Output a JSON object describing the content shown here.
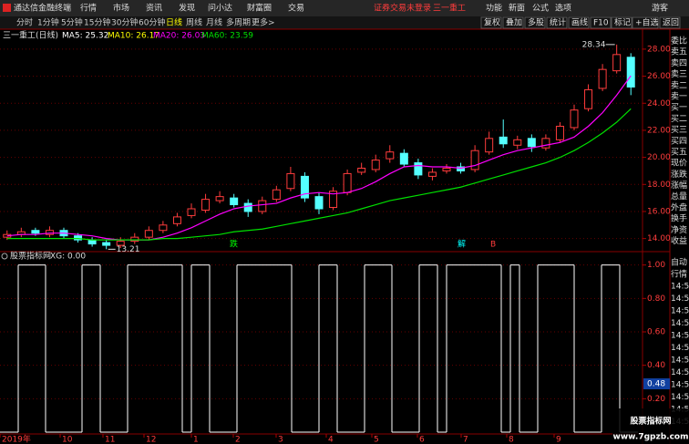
{
  "menu": {
    "app": "通达信金融终端",
    "items": [
      "行情",
      "市场",
      "资讯",
      "发现",
      "问小达",
      "财富圈",
      "交易"
    ],
    "status": "证券交易未登录",
    "stock": "三一重工",
    "right": [
      "功能",
      "新面",
      "公式",
      "选项"
    ],
    "user": "游客"
  },
  "toolbar": {
    "periods": [
      "分时",
      "1分钟",
      "5分钟",
      "15分钟",
      "30分钟",
      "60分钟",
      "日线",
      "周线",
      "月线",
      "多周期",
      "更多>"
    ],
    "tools": [
      "复权",
      "叠加",
      "多股",
      "统计",
      "画线",
      "F10",
      "标记",
      "+自选",
      "返回"
    ]
  },
  "side_panel": {
    "quote": [
      "委比",
      "卖五",
      "卖四",
      "卖三",
      "卖二",
      "卖一",
      "买一",
      "买二",
      "买三",
      "买四",
      "买五",
      "现价",
      "涨跌",
      "涨幅",
      "总量",
      "外盘",
      "换手",
      "净资",
      "收益"
    ],
    "tabs": [
      "自动",
      "行情"
    ],
    "times": [
      "14:5",
      "14:5",
      "14:5",
      "14:5",
      "14:5",
      "14:5",
      "14:5",
      "14:5",
      "14:5",
      "14:5",
      "14:5",
      "14:5"
    ]
  },
  "chart_data": [
    {
      "type": "candlestick",
      "title": "三一重工(日线)",
      "legend": [
        {
          "name": "MA5: 25.32",
          "color": "#ffffff"
        },
        {
          "name": "MA10: 26.17",
          "color": "#ffff00"
        }
      ],
      "open": [
        14.1,
        14.3,
        14.6,
        14.3,
        14.6,
        14.2,
        13.9,
        13.7,
        13.5,
        13.8,
        14.1,
        14.6,
        15.1,
        15.7,
        16.1,
        16.8,
        17.0,
        16.6,
        16.0,
        16.9,
        17.7,
        18.6,
        17.1,
        16.3,
        17.4,
        18.9,
        19.1,
        19.9,
        20.3,
        19.6,
        18.6,
        19.0,
        19.3,
        19.1,
        20.4,
        21.5,
        20.9,
        21.4,
        20.7,
        21.3,
        22.2,
        23.6,
        25.1,
        26.4,
        27.4
      ],
      "high": [
        14.6,
        14.8,
        14.8,
        14.9,
        14.8,
        14.4,
        14.1,
        13.9,
        14.1,
        14.4,
        14.9,
        15.3,
        15.9,
        16.6,
        17.3,
        17.5,
        17.3,
        16.9,
        17.1,
        17.9,
        19.3,
        18.9,
        17.4,
        17.8,
        19.1,
        19.6,
        20.2,
        20.9,
        20.6,
        19.9,
        19.2,
        19.5,
        19.6,
        20.9,
        21.9,
        22.8,
        21.6,
        21.7,
        21.7,
        22.6,
        23.9,
        25.4,
        26.9,
        28.34,
        27.7
      ],
      "low": [
        13.9,
        14.1,
        14.2,
        14.1,
        14.0,
        13.7,
        13.4,
        13.21,
        13.3,
        13.6,
        13.9,
        14.4,
        14.9,
        15.5,
        15.9,
        16.6,
        16.3,
        15.6,
        15.8,
        16.7,
        17.5,
        16.7,
        15.8,
        16.1,
        17.2,
        18.7,
        18.9,
        19.6,
        19.3,
        18.4,
        18.3,
        18.8,
        18.8,
        18.9,
        20.2,
        20.7,
        20.6,
        20.4,
        20.5,
        21.1,
        22.0,
        23.4,
        24.9,
        26.2,
        24.6
      ],
      "close": [
        14.3,
        14.5,
        14.4,
        14.6,
        14.2,
        13.9,
        13.6,
        13.5,
        13.8,
        14.1,
        14.6,
        15.0,
        15.6,
        16.2,
        16.9,
        17.1,
        16.5,
        16.0,
        16.8,
        17.6,
        18.8,
        17.0,
        16.2,
        17.5,
        18.8,
        19.2,
        19.8,
        20.4,
        19.5,
        18.7,
        18.9,
        19.2,
        19.0,
        20.5,
        21.4,
        21.0,
        21.3,
        20.8,
        21.4,
        22.3,
        23.5,
        25.0,
        26.5,
        27.6,
        25.2
      ],
      "up_color": "#ff3c3c",
      "down_color": "#54ffff",
      "series": [
        {
          "name": "MA20: 26.03",
          "color": "#ff00ff",
          "values": [
            14.2,
            14.3,
            14.3,
            14.4,
            14.4,
            14.3,
            14.2,
            14.0,
            13.9,
            13.9,
            13.9,
            14.1,
            14.4,
            14.8,
            15.3,
            15.8,
            16.2,
            16.4,
            16.5,
            16.6,
            17.0,
            17.3,
            17.4,
            17.3,
            17.4,
            17.7,
            18.2,
            18.8,
            19.3,
            19.4,
            19.3,
            19.3,
            19.2,
            19.4,
            19.8,
            20.2,
            20.5,
            20.7,
            20.9,
            21.1,
            21.5,
            22.3,
            23.3,
            24.6,
            26.03
          ]
        },
        {
          "name": "MA60: 23.59",
          "color": "#00e000",
          "values": [
            14.0,
            14.0,
            14.0,
            14.0,
            14.0,
            14.0,
            13.9,
            13.9,
            13.9,
            13.9,
            13.9,
            14.0,
            14.0,
            14.1,
            14.2,
            14.3,
            14.5,
            14.6,
            14.7,
            14.9,
            15.1,
            15.3,
            15.5,
            15.7,
            15.9,
            16.2,
            16.5,
            16.8,
            17.0,
            17.2,
            17.4,
            17.6,
            17.8,
            18.1,
            18.4,
            18.7,
            19.0,
            19.3,
            19.6,
            20.0,
            20.5,
            21.1,
            21.8,
            22.6,
            23.59
          ]
        }
      ],
      "annotations": [
        {
          "text": "跌",
          "color": "#00ff00"
        },
        {
          "text": "解",
          "color": "#00ffff"
        },
        {
          "text": "B",
          "color": "#ff3c3c"
        }
      ],
      "ylim": [
        13.1,
        28.6
      ],
      "yticks": [
        {
          "value": 14,
          "label": "14.00"
        },
        {
          "value": 16,
          "label": "16.00"
        },
        {
          "value": 18,
          "label": "18.00"
        },
        {
          "value": 20,
          "label": "20.00"
        },
        {
          "value": 22,
          "label": "22.00"
        },
        {
          "value": 24,
          "label": "24.00"
        },
        {
          "value": 26,
          "label": "26.00"
        },
        {
          "value": 28,
          "label": "28.00"
        }
      ],
      "grid": true
    },
    {
      "type": "step",
      "title": "股票指标网",
      "legend": "XG: 0.00",
      "color": "#ffffff",
      "values": [
        0,
        0,
        1,
        1,
        1,
        0,
        0,
        0,
        0,
        1,
        1,
        0,
        0,
        0,
        1,
        1,
        1,
        1,
        1,
        1,
        0,
        1,
        1,
        0,
        0,
        0,
        1,
        1,
        1,
        1,
        1,
        1,
        0,
        0,
        0,
        1,
        1,
        0,
        0,
        0,
        1,
        1,
        1,
        0,
        0,
        0,
        1,
        1,
        0,
        1,
        1,
        1,
        1,
        1,
        1,
        0,
        1,
        0,
        0,
        1,
        1,
        1,
        1,
        0,
        0,
        0,
        1,
        1,
        0,
        0
      ],
      "ylim": [
        0,
        1.02
      ],
      "yticks": [
        {
          "value": 0.2,
          "label": "0.20"
        },
        {
          "value": 0.4,
          "label": "0.40"
        },
        {
          "value": 0.6,
          "label": "0.60"
        },
        {
          "value": 0.8,
          "label": "0.80"
        },
        {
          "value": 1,
          "label": "1.00"
        }
      ],
      "cursor_value": "0.48",
      "x_labels": [
        "2019年",
        "10",
        "11",
        "12",
        "1",
        "2",
        "3",
        "4",
        "5",
        "6",
        "7",
        "8",
        "9"
      ],
      "grid": true
    }
  ],
  "watermark": {
    "name": "股票指标网",
    "url": "www.7gpzb.com"
  }
}
